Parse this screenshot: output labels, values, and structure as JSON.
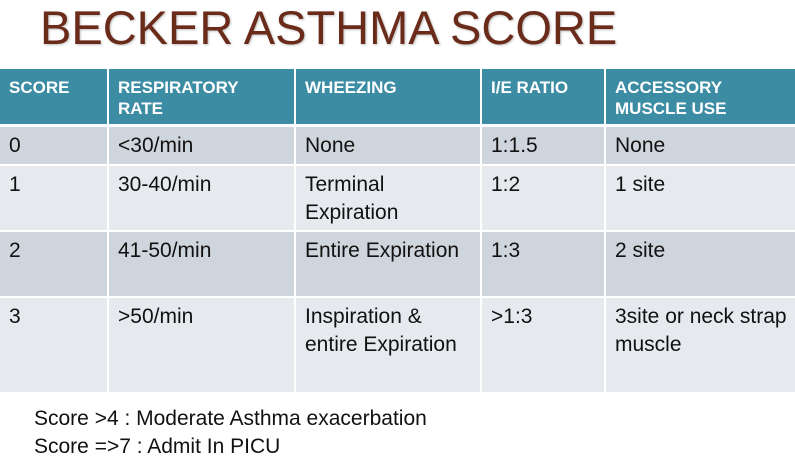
{
  "title": "BECKER ASTHMA SCORE",
  "table": {
    "headers": [
      "SCORE",
      "RESPIRATORY RATE",
      "WHEEZING",
      "I/E RATIO",
      "ACCESSORY MUSCLE USE"
    ],
    "rows": [
      [
        "0",
        "<30/min",
        "None",
        "1:1.5",
        "None"
      ],
      [
        "1",
        "30-40/min",
        "Terminal Expiration",
        "1:2",
        "1 site"
      ],
      [
        "2",
        "41-50/min",
        "Entire Expiration",
        "1:3",
        "2 site"
      ],
      [
        "3",
        ">50/min",
        "Inspiration & entire Expiration",
        ">1:3",
        "3site or neck strap muscle"
      ]
    ]
  },
  "notes": [
    "Score >4 : Moderate Asthma exacerbation",
    "Score =>7 : Admit In PICU"
  ],
  "colors": {
    "title": "#6b2b1a",
    "header_bg": "#3c8ca4",
    "row_dark": "#cfd5dc",
    "row_light": "#e6e9ee"
  }
}
